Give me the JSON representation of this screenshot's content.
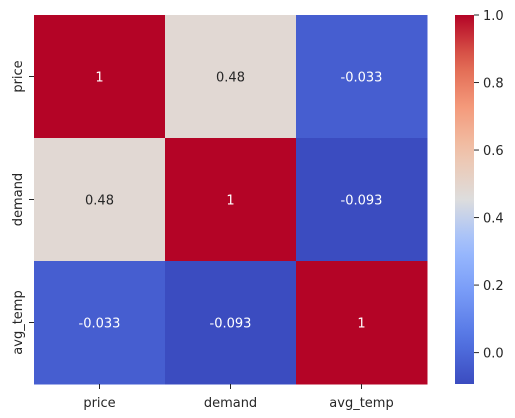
{
  "chart_data": {
    "type": "heatmap",
    "title": "",
    "row_labels": [
      "price",
      "demand",
      "avg_temp"
    ],
    "col_labels": [
      "price",
      "demand",
      "avg_temp"
    ],
    "values": [
      [
        1,
        0.48,
        -0.033
      ],
      [
        0.48,
        1,
        -0.093
      ],
      [
        -0.033,
        -0.093,
        1
      ]
    ],
    "cell_text": [
      [
        "1",
        "0.48",
        "-0.033"
      ],
      [
        "0.48",
        "1",
        "-0.093"
      ],
      [
        "-0.033",
        "-0.093",
        "1"
      ]
    ],
    "colormap": "coolwarm",
    "vmin": -0.093,
    "vmax": 1,
    "colorbar": {
      "ticks": [
        1.0,
        0.8,
        0.6,
        0.4,
        0.2,
        0.0
      ],
      "tick_labels": [
        "1.0",
        "0.8",
        "0.6",
        "0.4",
        "0.2",
        "0.0"
      ],
      "placement": "right"
    },
    "grid": false
  }
}
